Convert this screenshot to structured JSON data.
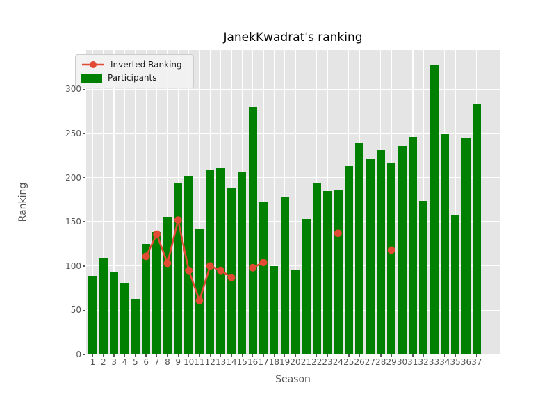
{
  "chart_data": {
    "type": "bar",
    "title": "JanekKwadrat's ranking",
    "xlabel": "Season",
    "ylabel": "Ranking",
    "categories": [
      "1",
      "2",
      "3",
      "4",
      "5",
      "6",
      "7",
      "8",
      "9",
      "10",
      "11",
      "12",
      "13",
      "14",
      "15",
      "16",
      "17",
      "18",
      "19",
      "20",
      "21",
      "22",
      "23",
      "24",
      "25",
      "26",
      "27",
      "28",
      "29",
      "30",
      "31",
      "32",
      "33",
      "34",
      "35",
      "36",
      "37"
    ],
    "series": [
      {
        "name": "Inverted Ranking",
        "type": "line",
        "color": "#E24A33",
        "values": [
          null,
          null,
          null,
          null,
          null,
          111,
          136,
          103,
          152,
          95,
          61,
          100,
          95,
          87,
          null,
          98,
          104,
          null,
          null,
          null,
          null,
          null,
          null,
          137,
          null,
          null,
          null,
          null,
          118,
          null,
          null,
          null,
          null,
          null,
          null,
          null,
          null
        ]
      },
      {
        "name": "Participants",
        "type": "bar",
        "color": "#008000",
        "values": [
          89,
          109,
          93,
          81,
          63,
          125,
          138,
          156,
          193,
          202,
          142,
          208,
          211,
          189,
          207,
          280,
          173,
          100,
          178,
          96,
          153,
          193,
          185,
          186,
          213,
          239,
          221,
          231,
          217,
          236,
          246,
          174,
          328,
          249,
          157,
          245,
          284
        ]
      }
    ],
    "yticks": [
      0,
      50,
      100,
      150,
      200,
      250,
      300
    ],
    "ylim": [
      0,
      344.3
    ],
    "grid": true,
    "legend_position": "upper left",
    "colors": {
      "plot_background": "#E5E5E5",
      "figure_background": "#FFFFFF",
      "gridline": "#FFFFFF",
      "tick_text": "#555555",
      "title_text": "#000000",
      "bar": "#008000",
      "line": "#E24A33"
    }
  }
}
